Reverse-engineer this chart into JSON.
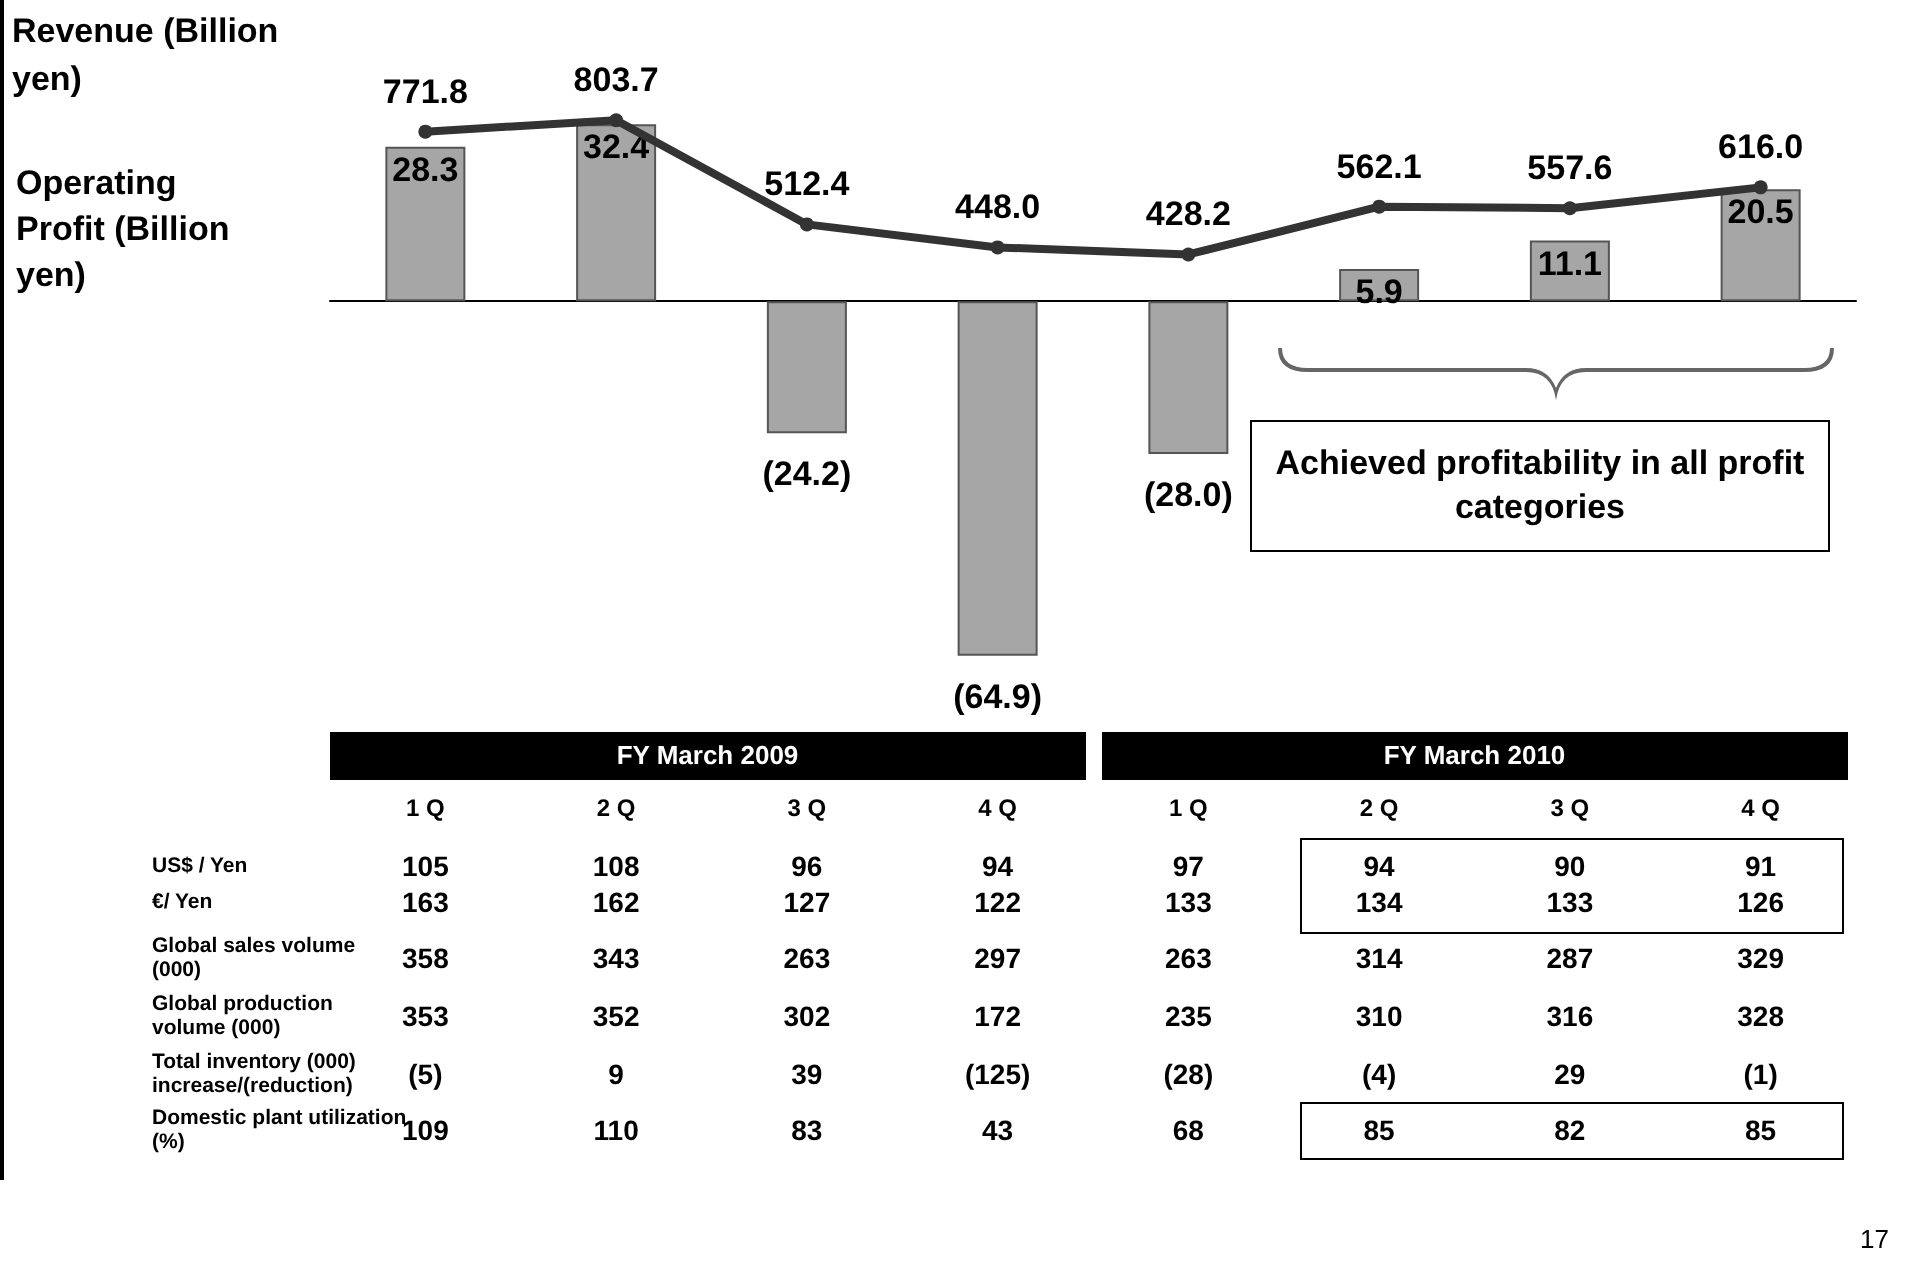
{
  "chart_data": [
    {
      "type": "bar",
      "categories": [
        "1 Q",
        "2 Q",
        "3 Q",
        "4 Q",
        "1 Q",
        "2 Q",
        "3 Q",
        "4 Q"
      ],
      "ylabel": "Operating Profit (Billion yen)",
      "y2label": "Revenue (Billion yen)",
      "series": [
        {
          "type": "bar",
          "color": "#a6a6a6",
          "values": [
            28.3,
            32.4,
            -24.2,
            -64.9,
            -28.0,
            5.9,
            11.1,
            20.5
          ],
          "value_labels": [
            "28.3",
            "32.4",
            "(24.2)",
            "(64.9)",
            "(28.0)",
            "5.9",
            "11.1",
            "20.5"
          ]
        },
        {
          "type": "line",
          "axis": "y2",
          "color": "#333333",
          "values": [
            771.8,
            803.7,
            512.4,
            448.0,
            428.2,
            562.1,
            557.6,
            616.0
          ],
          "value_labels": [
            "771.8",
            "803.7",
            "512.4",
            "448.0",
            "428.2",
            "562.1",
            "557.6",
            "616.0"
          ]
        }
      ],
      "marker": "circle",
      "line_style": "solid",
      "annotations": [
        "FY March 2009",
        "FY March 2010",
        "Achieved profitability in all profit categories",
        "17"
      ]
    },
    {
      "type": "other",
      "annotations": [
        "US$ / Yen",
        "105",
        "108",
        "96",
        "94",
        "97",
        "94",
        "90",
        "91",
        "€/ Yen",
        "163",
        "162",
        "127",
        "122",
        "133",
        "134",
        "133",
        "126",
        "Global sales volume (000)",
        "358",
        "343",
        "263",
        "297",
        "263",
        "314",
        "287",
        "329",
        "Global production volume (000)",
        "353",
        "352",
        "302",
        "172",
        "235",
        "310",
        "316",
        "328",
        "Total inventory (000) increase/(reduction)",
        "(5)",
        "9",
        "39",
        "(125)",
        "(28)",
        "(4)",
        "29",
        "(1)",
        "Domestic plant utilization (%)",
        "109",
        "110",
        "83",
        "43",
        "68",
        "85",
        "82",
        "85"
      ]
    }
  ]
}
